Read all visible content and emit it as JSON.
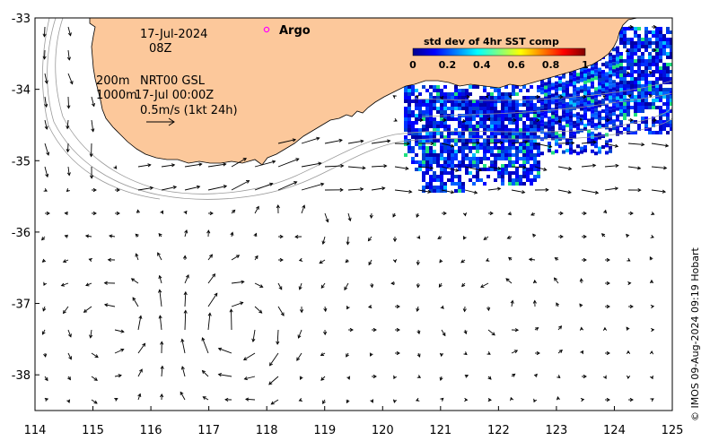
{
  "map": {
    "region": "South-west Australia current map",
    "lon_range": [
      114,
      125
    ],
    "lat_range": [
      -38.5,
      -33
    ],
    "x_ticks": [
      "114",
      "115",
      "116",
      "117",
      "118",
      "119",
      "120",
      "121",
      "122",
      "123",
      "124",
      "125"
    ],
    "y_ticks": [
      "-33",
      "-34",
      "-35",
      "-36",
      "-37",
      "-38"
    ],
    "land_color": "#fcc89b",
    "ocean_color": "#ffffff",
    "contour_color": "#9a9a9a",
    "arrow_color": "#000000"
  },
  "labels": {
    "date": "17-Jul-2024",
    "time": "08Z",
    "depth1": "200m",
    "depth2": "1000m",
    "source": "NRT00 GSL",
    "datetime": "17-Jul 00:00Z",
    "scale": "0.5m/s (1kt 24h)",
    "argo": "Argo",
    "argo_icon": "circle-marker-icon",
    "argo_color": "#ff00ff"
  },
  "colorbar": {
    "title": "std dev of 4hr SST comp",
    "ticks": [
      "0",
      "0.2",
      "0.4",
      "0.6",
      "0.8",
      "1"
    ],
    "colors": [
      "#00008f",
      "#0000ff",
      "#0080ff",
      "#00ffff",
      "#80ff80",
      "#ffff00",
      "#ff8000",
      "#ff0000",
      "#800000"
    ]
  },
  "credit": "© IMOS 09-Aug-2024 09:19 Hobart"
}
